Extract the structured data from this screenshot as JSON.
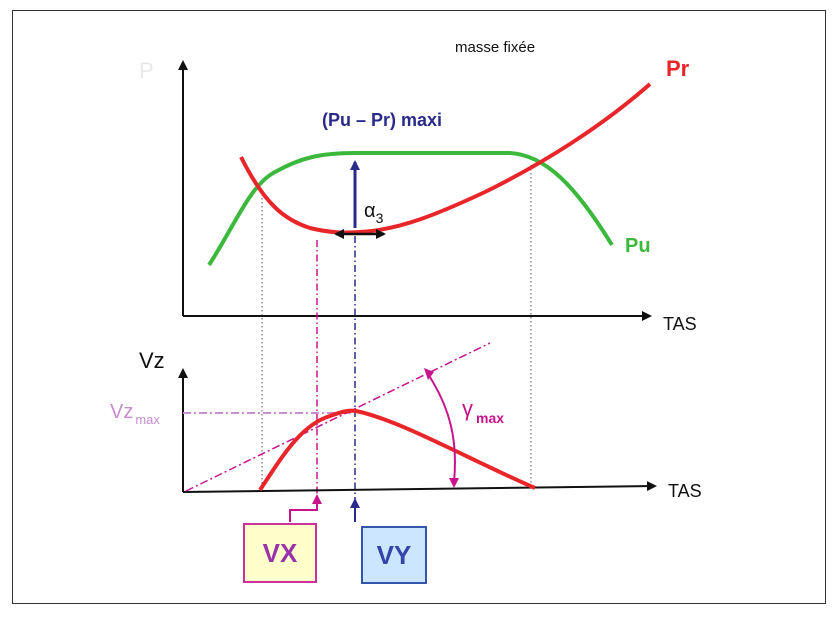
{
  "labels": {
    "note": "masse fixée",
    "p_axis": "P",
    "pr": "Pr",
    "pu": "Pu",
    "max_diff": "(Pu – Pr) maxi",
    "alpha": "α",
    "alpha_sub": "3",
    "tas_top": "TAS",
    "vz_axis": "Vz",
    "vzmax": "Vz",
    "vzmax_sub": "max",
    "gamma": "γ",
    "gamma_sub": "max",
    "tas_bottom": "TAS",
    "vx": "VX",
    "vy": "VY"
  },
  "colors": {
    "pr": "#e8262a",
    "pu": "#3cb83c",
    "vy": "#2a2a8a",
    "vx": "#c8148c",
    "vzmax": "#c88cd0",
    "axis": "#111111"
  }
}
